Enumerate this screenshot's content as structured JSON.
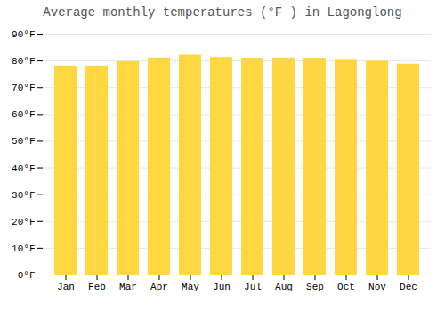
{
  "chart_data": {
    "type": "bar",
    "title": "Average monthly temperatures (°F ) in Lagonglong",
    "categories": [
      "Jan",
      "Feb",
      "Mar",
      "Apr",
      "May",
      "Jun",
      "Jul",
      "Aug",
      "Sep",
      "Oct",
      "Nov",
      "Dec"
    ],
    "values": [
      78.1,
      78.1,
      79.7,
      81.1,
      82.2,
      81.3,
      81.0,
      81.1,
      81.0,
      80.6,
      79.9,
      78.8
    ],
    "color": "#FFD740",
    "ylim": [
      0,
      90
    ],
    "yticks": [
      {
        "value": 0,
        "label": "0°F"
      },
      {
        "value": 10,
        "label": "10°F"
      },
      {
        "value": 20,
        "label": "20°F"
      },
      {
        "value": 30,
        "label": "30°F"
      },
      {
        "value": 40,
        "label": "40°F"
      },
      {
        "value": 50,
        "label": "50°F"
      },
      {
        "value": 60,
        "label": "60°F"
      },
      {
        "value": 70,
        "label": "70°F"
      },
      {
        "value": 80,
        "label": "80°F"
      },
      {
        "value": 90,
        "label": "90°F"
      }
    ],
    "grid": true
  }
}
